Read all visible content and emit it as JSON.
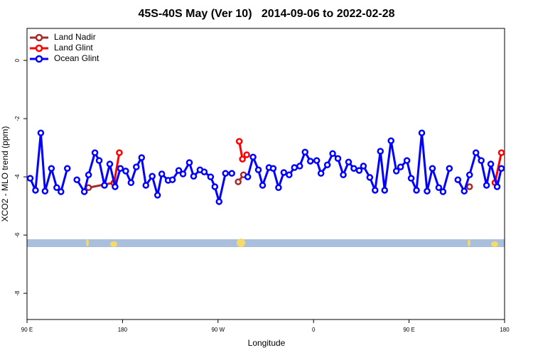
{
  "chart_data": {
    "type": "line",
    "title": "45S-40S May (Ver 10)   2014-09-06 to 2022-02-28",
    "xlabel": "Longitude",
    "ylabel": "XCO2 - MLO trend (ppm)",
    "xlim": [
      90,
      540
    ],
    "xticks": [
      {
        "value": 90,
        "label": "90 E"
      },
      180,
      {
        "value": 270,
        "label": "90 W"
      },
      {
        "value": 360,
        "label": "0"
      },
      {
        "value": 450,
        "label": "90 E"
      },
      {
        "value": 540,
        "label": "180"
      }
    ],
    "ylim": [
      -8.9,
      1.1
    ],
    "yticks": [
      0,
      -2,
      -4,
      -6,
      -8
    ],
    "legend": "top-left",
    "series": [
      {
        "name": "Land Nadir",
        "color": "#a52a2a",
        "x": [
          148,
          172,
          230,
          289,
          294,
          400,
          507,
          520,
          531
        ],
        "values": [
          -4.37,
          -4.2,
          null,
          -4.17,
          -3.93,
          null,
          -4.34,
          null,
          -4.2
        ]
      },
      {
        "name": "Land Glint",
        "color": "#ff0000",
        "x": [
          172,
          177,
          230,
          290,
          293,
          297,
          400,
          531,
          537
        ],
        "values": [
          -4.22,
          -3.17,
          null,
          -2.78,
          -3.39,
          -3.24,
          null,
          -4.2,
          -3.17
        ]
      },
      {
        "name": "Ocean Glint",
        "color": "#0000ff",
        "x": [
          93,
          98,
          103,
          107,
          113,
          118,
          122,
          128,
          132,
          137,
          144,
          148,
          154,
          158,
          163,
          168,
          173,
          178,
          183,
          188,
          193,
          198,
          202,
          208,
          213,
          217,
          223,
          227,
          233,
          237,
          243,
          247,
          253,
          257,
          263,
          267,
          271,
          277,
          283,
          290,
          298,
          303,
          308,
          312,
          318,
          322,
          327,
          332,
          337,
          342,
          347,
          352,
          357,
          363,
          367,
          373,
          378,
          383,
          388,
          393,
          398,
          403,
          407,
          413,
          418,
          423,
          427,
          433,
          438,
          442,
          448,
          452,
          457,
          462,
          467,
          472,
          478,
          482,
          488,
          492,
          496,
          502,
          507,
          513,
          518,
          523,
          527,
          533,
          537
        ],
        "values": [
          -4.05,
          -4.46,
          -2.49,
          -4.49,
          -3.71,
          -4.37,
          -4.51,
          -3.71,
          null,
          -4.1,
          -4.51,
          -3.93,
          -3.17,
          -3.44,
          -4.29,
          -3.56,
          -4.34,
          -3.71,
          -3.8,
          -4.2,
          -3.66,
          -3.34,
          -4.29,
          -3.98,
          -4.63,
          -3.9,
          -4.12,
          -4.1,
          -3.78,
          -3.9,
          -3.51,
          -3.98,
          -3.76,
          -3.83,
          -4.0,
          -4.34,
          -4.85,
          -3.88,
          -3.88,
          null,
          -4.0,
          -3.32,
          -3.76,
          -4.29,
          -3.68,
          -3.71,
          -4.37,
          -3.85,
          -3.93,
          -3.68,
          -3.63,
          -3.15,
          -3.46,
          -3.44,
          -3.88,
          -3.59,
          -3.2,
          -3.37,
          -3.93,
          -3.49,
          -3.71,
          -3.78,
          -3.63,
          -4.02,
          -4.46,
          -3.12,
          -4.46,
          -2.76,
          -3.8,
          -3.66,
          -3.44,
          -4.05,
          -4.46,
          -2.49,
          -4.49,
          -3.71,
          -4.37,
          -4.51,
          -3.71,
          null,
          -4.1,
          -4.49,
          -3.93,
          -3.17,
          -3.44,
          -4.29,
          -3.56,
          -4.34,
          -3.71
        ]
      }
    ]
  }
}
